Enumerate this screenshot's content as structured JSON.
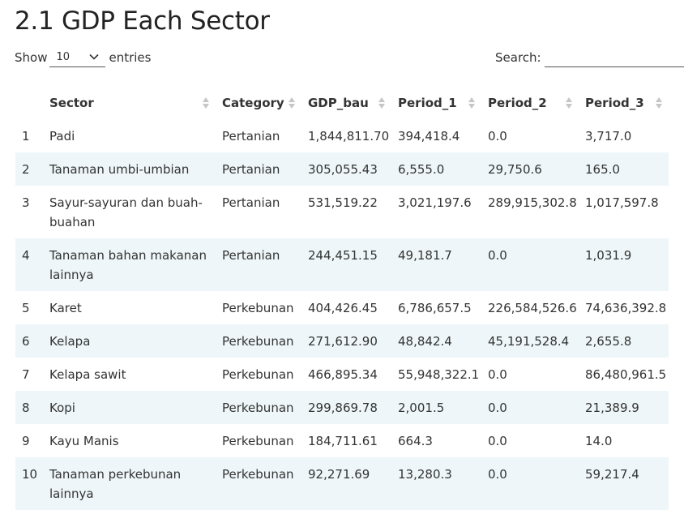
{
  "title": "2.1 GDP Each Sector",
  "length_control": {
    "show_label": "Show",
    "selected": "10",
    "entries_label": "entries"
  },
  "search": {
    "label": "Search:",
    "value": ""
  },
  "table": {
    "columns": [
      "",
      "Sector",
      "Category",
      "GDP_bau",
      "Period_1",
      "Period_2",
      "Period_3"
    ],
    "rows": [
      [
        "1",
        "Padi",
        "Pertanian",
        "1,844,811.70",
        "394,418.4",
        "0.0",
        "3,717.0"
      ],
      [
        "2",
        "Tanaman umbi-umbian",
        "Pertanian",
        "305,055.43",
        "6,555.0",
        "29,750.6",
        "165.0"
      ],
      [
        "3",
        "Sayur-sayuran dan buah-buahan",
        "Pertanian",
        "531,519.22",
        "3,021,197.6",
        "289,915,302.8",
        "1,017,597.8"
      ],
      [
        "4",
        "Tanaman bahan makanan lainnya",
        "Pertanian",
        "244,451.15",
        "49,181.7",
        "0.0",
        "1,031.9"
      ],
      [
        "5",
        "Karet",
        "Perkebunan",
        "404,426.45",
        "6,786,657.5",
        "226,584,526.6",
        "74,636,392.8"
      ],
      [
        "6",
        "Kelapa",
        "Perkebunan",
        "271,612.90",
        "48,842.4",
        "45,191,528.4",
        "2,655.8"
      ],
      [
        "7",
        "Kelapa sawit",
        "Perkebunan",
        "466,895.34",
        "55,948,322.1",
        "0.0",
        "86,480,961.5"
      ],
      [
        "8",
        "Kopi",
        "Perkebunan",
        "299,869.78",
        "2,001.5",
        "0.0",
        "21,389.9"
      ],
      [
        "9",
        "Kayu Manis",
        "Perkebunan",
        "184,711.61",
        "664.3",
        "0.0",
        "14.0"
      ],
      [
        "10",
        "Tanaman perkebunan lainnya",
        "Perkebunan",
        "92,271.69",
        "13,280.3",
        "0.0",
        "59,217.4"
      ]
    ]
  },
  "colors": {
    "stripe": "#eef6f9",
    "sort_icon": "#c6c6c6"
  }
}
